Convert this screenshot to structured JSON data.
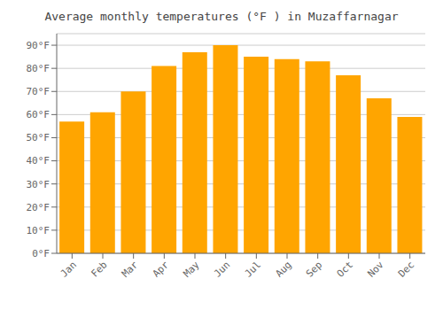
{
  "chart_data": {
    "type": "bar",
    "title": "Average monthly temperatures (°F ) in Muzaffarnagar",
    "categories": [
      "Jan",
      "Feb",
      "Mar",
      "Apr",
      "May",
      "Jun",
      "Jul",
      "Aug",
      "Sep",
      "Oct",
      "Nov",
      "Dec"
    ],
    "values": [
      57,
      61,
      70,
      81,
      87,
      90,
      85,
      84,
      83,
      77,
      67,
      59
    ],
    "color": "#FFA500",
    "ylim": [
      0,
      95
    ],
    "yticks": [
      {
        "value": 0,
        "label": "0°F"
      },
      {
        "value": 10,
        "label": "10°F"
      },
      {
        "value": 20,
        "label": "20°F"
      },
      {
        "value": 30,
        "label": "30°F"
      },
      {
        "value": 40,
        "label": "40°F"
      },
      {
        "value": 50,
        "label": "50°F"
      },
      {
        "value": 60,
        "label": "60°F"
      },
      {
        "value": 70,
        "label": "70°F"
      },
      {
        "value": 80,
        "label": "80°F"
      },
      {
        "value": 90,
        "label": "90°F"
      }
    ],
    "grid": true
  }
}
